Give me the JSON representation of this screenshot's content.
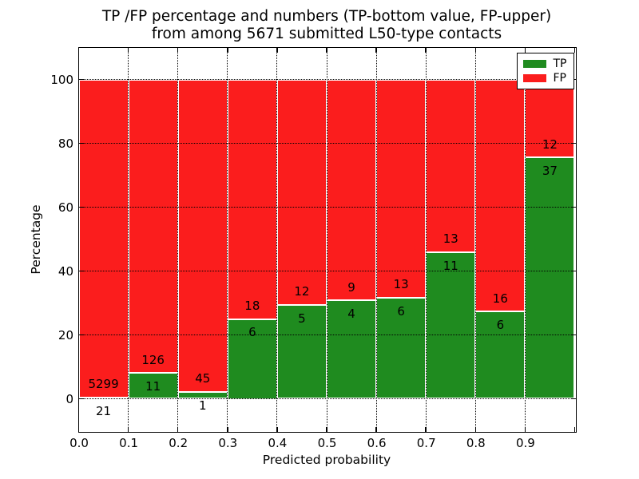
{
  "title": {
    "line1": "TP /FP percentage and numbers (TP-bottom value, FP-upper)",
    "line2": "from among 5671 submitted L50-type contacts"
  },
  "chart_data": {
    "type": "bar",
    "stacked": true,
    "normalized_to_percent": true,
    "title": "TP /FP percentage and numbers (TP-bottom value, FP-upper)\nfrom among 5671 submitted L50-type contacts",
    "xlabel": "Predicted probability",
    "ylabel": "Percentage",
    "xlim": [
      0.0,
      1.0
    ],
    "ylim": [
      -10,
      110
    ],
    "bin_width": 0.1,
    "bin_starts": [
      0.0,
      0.1,
      0.2,
      0.3,
      0.4,
      0.5,
      0.6,
      0.7,
      0.8,
      0.9
    ],
    "categories": [
      "0.0-0.1",
      "0.1-0.2",
      "0.2-0.3",
      "0.3-0.4",
      "0.4-0.5",
      "0.5-0.6",
      "0.6-0.7",
      "0.7-0.8",
      "0.8-0.9",
      "0.9-1.0"
    ],
    "series": [
      {
        "name": "TP",
        "color": "#1f8b1f",
        "counts": [
          21,
          11,
          1,
          6,
          5,
          4,
          6,
          11,
          6,
          37
        ]
      },
      {
        "name": "FP",
        "color": "#fb1d1d",
        "counts": [
          5299,
          126,
          45,
          18,
          12,
          9,
          13,
          13,
          16,
          12
        ]
      }
    ],
    "tp_percent": [
      0.39,
      8.03,
      2.17,
      25.0,
      29.41,
      30.77,
      31.58,
      45.83,
      27.27,
      75.51
    ],
    "xticks": [
      "0.0",
      "0.1",
      "0.2",
      "0.3",
      "0.4",
      "0.5",
      "0.6",
      "0.7",
      "0.8",
      "0.9"
    ],
    "yticks": [
      0,
      20,
      40,
      60,
      80,
      100
    ],
    "grid": "dotted",
    "legend_position": "upper right"
  },
  "legend": {
    "items": [
      {
        "label": "TP",
        "color": "#1f8b1f"
      },
      {
        "label": "FP",
        "color": "#fb1d1d"
      }
    ]
  }
}
